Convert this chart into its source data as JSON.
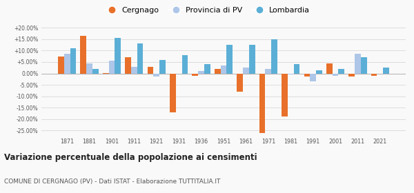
{
  "years": [
    1871,
    1881,
    1901,
    1911,
    1921,
    1931,
    1936,
    1951,
    1961,
    1971,
    1981,
    1991,
    2001,
    2011,
    2021
  ],
  "cergnago": [
    7.5,
    16.5,
    0.2,
    7.0,
    3.0,
    -17.0,
    -1.0,
    2.0,
    -8.0,
    -26.0,
    -19.0,
    -1.5,
    4.5,
    -1.5,
    -1.0
  ],
  "provincia_pv": [
    8.5,
    4.5,
    5.5,
    3.0,
    -1.5,
    0.0,
    1.0,
    3.5,
    2.5,
    2.0,
    -0.5,
    -3.5,
    -1.0,
    8.5,
    0.0
  ],
  "lombardia": [
    11.0,
    2.0,
    15.5,
    13.0,
    6.0,
    8.0,
    4.0,
    12.5,
    12.5,
    15.0,
    4.0,
    1.5,
    2.0,
    7.0,
    2.5
  ],
  "cergnago_color": "#e8702a",
  "provincia_color": "#aec6e8",
  "lombardia_color": "#5bafd6",
  "bg_color": "#f9f9f9",
  "grid_color": "#dddddd",
  "ylim": [
    -27,
    22
  ],
  "yticks": [
    -25,
    -20,
    -15,
    -10,
    -5,
    0,
    5,
    10,
    15,
    20
  ],
  "ytick_labels": [
    "-25.00%",
    "-20.00%",
    "-15.00%",
    "-10.00%",
    "-5.00%",
    "0.00%",
    "+5.00%",
    "+10.00%",
    "+15.00%",
    "+20.00%"
  ],
  "title": "Variazione percentuale della popolazione ai censimenti",
  "subtitle": "COMUNE DI CERGNAGO (PV) - Dati ISTAT - Elaborazione TUTTITALIA.IT",
  "legend_cergnago": "Cergnago",
  "legend_provincia": "Provincia di PV",
  "legend_lombardia": "Lombardia"
}
